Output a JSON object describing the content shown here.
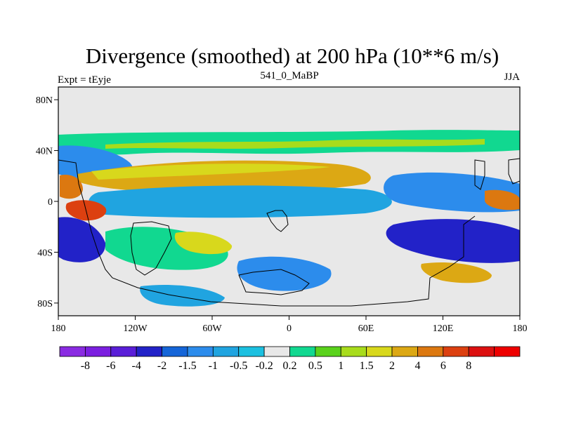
{
  "chart_data": {
    "type": "heatmap",
    "title": "Divergence (smoothed) at 200 hPa (10**6 m/s)",
    "left_label": "Expt = tEyje",
    "center_label": "541_0_MaBP",
    "right_label": "JJA",
    "x_ticks": [
      "180",
      "120W",
      "60W",
      "0",
      "60E",
      "120E",
      "180"
    ],
    "y_ticks": [
      "80N",
      "40N",
      "0",
      "40S",
      "80S"
    ],
    "x_range": [
      -180,
      180
    ],
    "y_range": [
      -90,
      90
    ],
    "colorbar": {
      "colors": [
        "#8a2be2",
        "#7b1fe0",
        "#5a1ed8",
        "#2222c8",
        "#1565d8",
        "#2c8cec",
        "#20a4e0",
        "#1cc0e0",
        "#e8e8e8",
        "#11d890",
        "#5ad21c",
        "#a8dc1c",
        "#d8d81c",
        "#dca814",
        "#dc7810",
        "#dc4010",
        "#dc1010",
        "#ee0000"
      ],
      "labels": [
        "-8",
        "-6",
        "-4",
        "-2",
        "-1.5",
        "-1",
        "-0.5",
        "-0.2",
        "0.2",
        "0.5",
        "1",
        "1.5",
        "2",
        "4",
        "6",
        "8"
      ]
    },
    "missing_color": "#e8e8e8"
  }
}
